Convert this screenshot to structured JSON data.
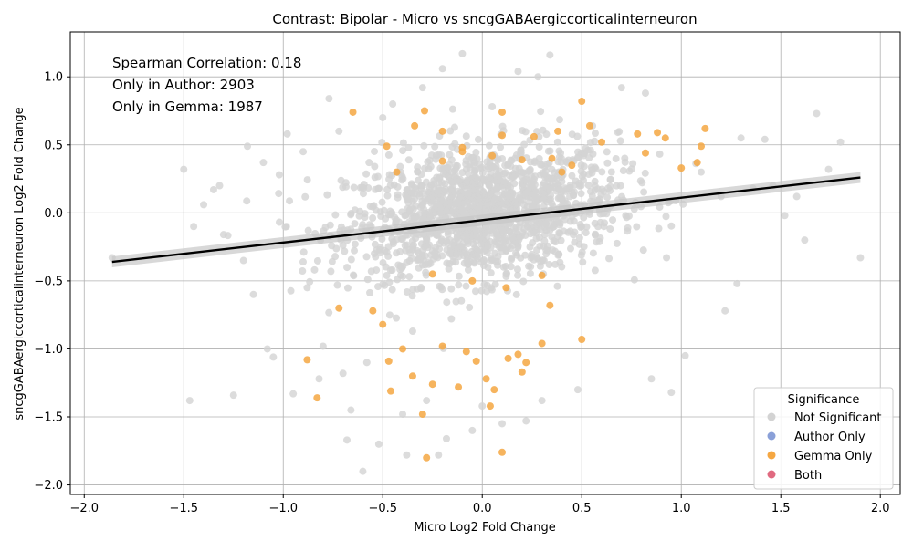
{
  "chart_data": {
    "type": "scatter",
    "title": "Contrast: Bipolar - Micro vs sncgGABAergiccorticalinterneuron",
    "xlabel": "Micro Log2 Fold Change",
    "ylabel": "sncgGABAergiccorticalinterneuron Log2 Fold Change",
    "xlim": [
      -2.07,
      2.1
    ],
    "ylim": [
      -2.07,
      1.33
    ],
    "xticks": [
      -2.0,
      -1.5,
      -1.0,
      -0.5,
      0.0,
      0.5,
      1.0,
      1.5,
      2.0
    ],
    "yticks": [
      -2.0,
      -1.5,
      -1.0,
      -0.5,
      0.0,
      0.5,
      1.0
    ],
    "xtick_labels": [
      "−2.0",
      "−1.5",
      "−1.0",
      "−0.5",
      "0.0",
      "0.5",
      "1.0",
      "1.5",
      "2.0"
    ],
    "ytick_labels": [
      "−2.0",
      "−1.5",
      "−1.0",
      "−0.5",
      "0.0",
      "0.5",
      "1.0"
    ],
    "grid": true,
    "annotations": [
      "Spearman Correlation: 0.18",
      "Only in Author: 2903",
      "Only in Gemma: 1987"
    ],
    "legend": {
      "title": "Significance",
      "placement": "lower-right",
      "entries": [
        {
          "label": "Not Significant",
          "color": "#d3d3d3"
        },
        {
          "label": "Author Only",
          "color": "#8aa0d8"
        },
        {
          "label": "Gemma Only",
          "color": "#f5a742"
        },
        {
          "label": "Both",
          "color": "#e06a80"
        }
      ]
    },
    "regression_line": {
      "color": "#000000",
      "band_color": "#c8c8c8",
      "points": [
        [
          -1.86,
          -0.36
        ],
        [
          1.9,
          0.26
        ]
      ]
    },
    "series": [
      {
        "name": "Not Significant",
        "color": "#d3d3d3",
        "points": [
          [
            -1.86,
            -0.33
          ],
          [
            -1.5,
            0.32
          ],
          [
            -1.47,
            -1.38
          ],
          [
            -1.45,
            -0.1
          ],
          [
            -1.35,
            0.17
          ],
          [
            -1.32,
            0.2
          ],
          [
            -1.3,
            -0.16
          ],
          [
            -1.25,
            -1.34
          ],
          [
            -1.2,
            -0.35
          ],
          [
            -1.18,
            0.49
          ],
          [
            -1.1,
            0.37
          ],
          [
            -1.08,
            -1.0
          ],
          [
            -1.05,
            -1.06
          ],
          [
            -1.02,
            0.28
          ],
          [
            -0.98,
            0.58
          ],
          [
            -0.95,
            -1.33
          ],
          [
            -0.9,
            0.45
          ],
          [
            -0.88,
            -0.55
          ],
          [
            -0.82,
            -1.22
          ],
          [
            -0.8,
            -0.98
          ],
          [
            -0.77,
            0.84
          ],
          [
            -0.72,
            0.6
          ],
          [
            -0.7,
            -1.18
          ],
          [
            -0.68,
            -1.67
          ],
          [
            -0.66,
            -1.45
          ],
          [
            -0.6,
            -1.9
          ],
          [
            -0.58,
            -1.1
          ],
          [
            -0.52,
            -1.7
          ],
          [
            -0.5,
            0.7
          ],
          [
            -0.45,
            0.8
          ],
          [
            -0.4,
            -1.48
          ],
          [
            -0.38,
            -1.78
          ],
          [
            -0.3,
            0.92
          ],
          [
            -0.28,
            -1.38
          ],
          [
            -0.22,
            -1.78
          ],
          [
            -0.2,
            1.06
          ],
          [
            -0.18,
            -1.66
          ],
          [
            -0.1,
            1.17
          ],
          [
            -0.05,
            -1.6
          ],
          [
            0.0,
            -1.42
          ],
          [
            0.05,
            0.78
          ],
          [
            0.1,
            -1.55
          ],
          [
            0.18,
            1.04
          ],
          [
            0.28,
            1.0
          ],
          [
            0.34,
            1.16
          ],
          [
            0.3,
            -1.38
          ],
          [
            0.22,
            -1.53
          ],
          [
            0.48,
            -1.3
          ],
          [
            0.7,
            0.92
          ],
          [
            0.82,
            0.88
          ],
          [
            0.85,
            -1.22
          ],
          [
            0.95,
            -1.32
          ],
          [
            1.02,
            -1.05
          ],
          [
            1.22,
            -0.72
          ],
          [
            1.28,
            -0.52
          ],
          [
            1.3,
            0.55
          ],
          [
            1.42,
            0.54
          ],
          [
            1.52,
            -0.02
          ],
          [
            1.62,
            -0.2
          ],
          [
            1.68,
            0.73
          ],
          [
            1.74,
            0.32
          ],
          [
            1.8,
            0.52
          ],
          [
            1.9,
            -0.33
          ],
          [
            1.58,
            0.12
          ],
          [
            1.46,
            0.2
          ],
          [
            1.36,
            0.18
          ],
          [
            1.2,
            0.12
          ],
          [
            1.1,
            0.3
          ],
          [
            -1.4,
            0.06
          ],
          [
            -1.15,
            -0.6
          ]
        ]
      },
      {
        "name": "Gemma Only",
        "color": "#f5a742",
        "points": [
          [
            -0.65,
            0.74
          ],
          [
            -0.48,
            0.49
          ],
          [
            -0.43,
            0.3
          ],
          [
            -0.34,
            0.64
          ],
          [
            -0.29,
            0.75
          ],
          [
            -0.2,
            0.6
          ],
          [
            -0.1,
            0.45
          ],
          [
            0.1,
            0.74
          ],
          [
            0.1,
            0.57
          ],
          [
            0.26,
            0.56
          ],
          [
            0.38,
            0.6
          ],
          [
            0.5,
            0.82
          ],
          [
            0.54,
            0.64
          ],
          [
            0.6,
            0.52
          ],
          [
            0.78,
            0.58
          ],
          [
            0.82,
            0.44
          ],
          [
            0.88,
            0.59
          ],
          [
            0.92,
            0.55
          ],
          [
            1.0,
            0.33
          ],
          [
            1.08,
            0.37
          ],
          [
            1.1,
            0.49
          ],
          [
            1.12,
            0.62
          ],
          [
            -0.88,
            -1.08
          ],
          [
            -0.83,
            -1.36
          ],
          [
            -0.72,
            -0.7
          ],
          [
            -0.55,
            -0.72
          ],
          [
            -0.47,
            -1.09
          ],
          [
            -0.46,
            -1.31
          ],
          [
            -0.4,
            -1.0
          ],
          [
            -0.35,
            -1.2
          ],
          [
            -0.3,
            -1.48
          ],
          [
            -0.28,
            -1.8
          ],
          [
            -0.25,
            -1.26
          ],
          [
            -0.2,
            -0.98
          ],
          [
            -0.12,
            -1.28
          ],
          [
            -0.08,
            -1.02
          ],
          [
            -0.03,
            -1.09
          ],
          [
            0.02,
            -1.22
          ],
          [
            0.04,
            -1.42
          ],
          [
            0.06,
            -1.3
          ],
          [
            0.1,
            -1.76
          ],
          [
            0.13,
            -1.07
          ],
          [
            0.18,
            -1.04
          ],
          [
            0.2,
            -1.17
          ],
          [
            0.22,
            -1.1
          ],
          [
            0.3,
            -0.96
          ],
          [
            0.34,
            -0.68
          ],
          [
            0.5,
            -0.93
          ],
          [
            -0.5,
            -0.82
          ],
          [
            0.3,
            -0.46
          ],
          [
            -0.1,
            0.48
          ],
          [
            0.05,
            0.42
          ],
          [
            0.2,
            0.39
          ],
          [
            0.35,
            0.4
          ],
          [
            0.45,
            0.35
          ],
          [
            -0.2,
            0.38
          ],
          [
            -0.05,
            -0.5
          ],
          [
            0.12,
            -0.55
          ],
          [
            -0.25,
            -0.45
          ],
          [
            0.4,
            0.3
          ]
        ]
      }
    ]
  }
}
